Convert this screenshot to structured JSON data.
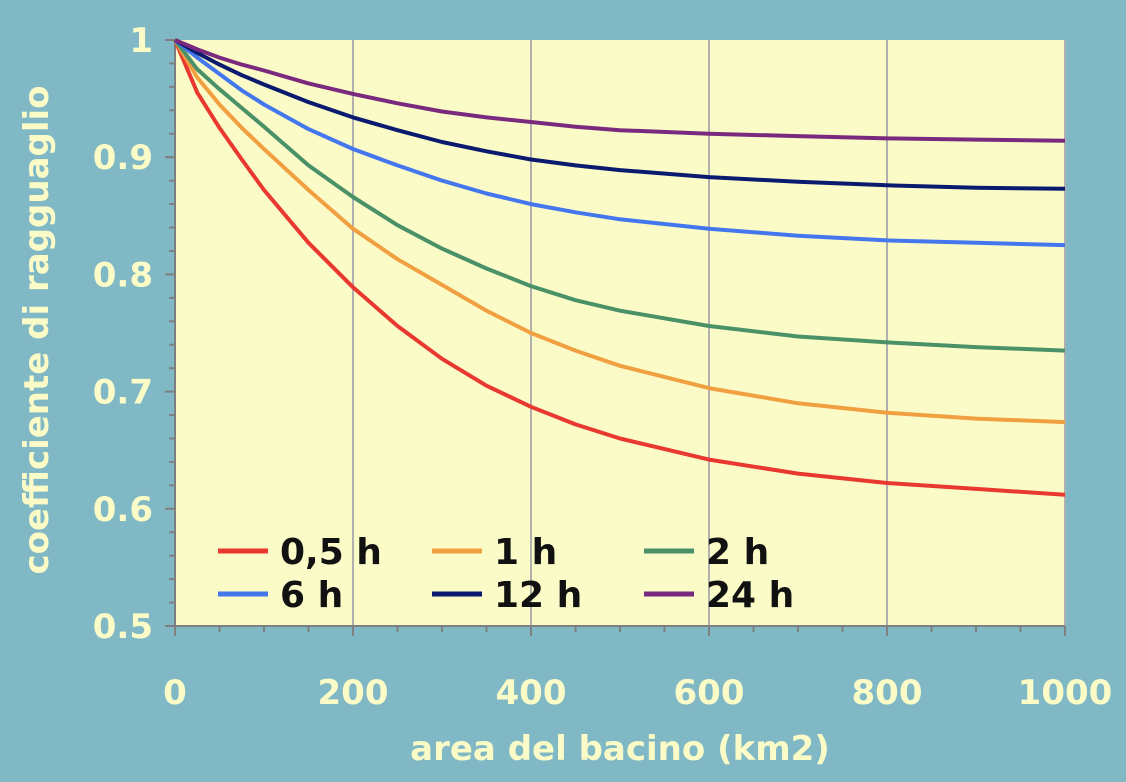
{
  "chart_data": {
    "type": "line",
    "title": "",
    "xlabel": "area del bacino (km2)",
    "ylabel": "coefficiente di ragguaglio",
    "xlim": [
      0,
      1000
    ],
    "ylim": [
      0.5,
      1
    ],
    "x_ticks": [
      0,
      200,
      400,
      600,
      800,
      1000
    ],
    "x_tick_labels": [
      "0",
      "200",
      "400",
      "600",
      "800",
      "1000"
    ],
    "y_ticks": [
      0.5,
      0.6,
      0.7,
      0.8,
      0.9,
      1
    ],
    "y_tick_labels": [
      "0.5",
      "0.6",
      "0.7",
      "0.8",
      "0.9",
      "1"
    ],
    "grid": "vertical major gridlines",
    "legend_position": "bottom-left inside plot",
    "x": [
      0,
      25,
      50,
      75,
      100,
      150,
      200,
      250,
      300,
      350,
      400,
      450,
      500,
      600,
      700,
      800,
      900,
      1000
    ],
    "series": [
      {
        "name": "0,5 h",
        "color": "#e8382f",
        "values": [
          1.0,
          0.955,
          0.925,
          0.898,
          0.872,
          0.827,
          0.789,
          0.756,
          0.728,
          0.705,
          0.687,
          0.672,
          0.66,
          0.642,
          0.63,
          0.622,
          0.617,
          0.612
        ]
      },
      {
        "name": "1 h",
        "color": "#f0a040",
        "values": [
          1.0,
          0.968,
          0.945,
          0.925,
          0.907,
          0.872,
          0.839,
          0.813,
          0.791,
          0.769,
          0.75,
          0.735,
          0.722,
          0.703,
          0.69,
          0.682,
          0.677,
          0.674
        ]
      },
      {
        "name": "2 h",
        "color": "#4a9168",
        "values": [
          1.0,
          0.975,
          0.958,
          0.942,
          0.926,
          0.893,
          0.866,
          0.842,
          0.822,
          0.805,
          0.79,
          0.778,
          0.769,
          0.756,
          0.747,
          0.742,
          0.738,
          0.735
        ]
      },
      {
        "name": "6 h",
        "color": "#4477ee",
        "values": [
          1.0,
          0.985,
          0.971,
          0.957,
          0.945,
          0.924,
          0.907,
          0.893,
          0.88,
          0.869,
          0.86,
          0.853,
          0.847,
          0.839,
          0.833,
          0.829,
          0.827,
          0.825
        ]
      },
      {
        "name": "12 h",
        "color": "#0a1a6e",
        "values": [
          1.0,
          0.989,
          0.979,
          0.97,
          0.962,
          0.947,
          0.934,
          0.923,
          0.913,
          0.905,
          0.898,
          0.893,
          0.889,
          0.883,
          0.879,
          0.876,
          0.874,
          0.873
        ]
      },
      {
        "name": "24 h",
        "color": "#7a2a7e",
        "values": [
          1.0,
          0.992,
          0.985,
          0.979,
          0.974,
          0.963,
          0.954,
          0.946,
          0.939,
          0.934,
          0.93,
          0.926,
          0.923,
          0.92,
          0.918,
          0.916,
          0.915,
          0.914
        ]
      }
    ]
  },
  "colors": {
    "background": "#80b9c5",
    "plot_background": "#fbfbc8",
    "text": "#fbfbc8",
    "grid": "#b0b0b0"
  }
}
